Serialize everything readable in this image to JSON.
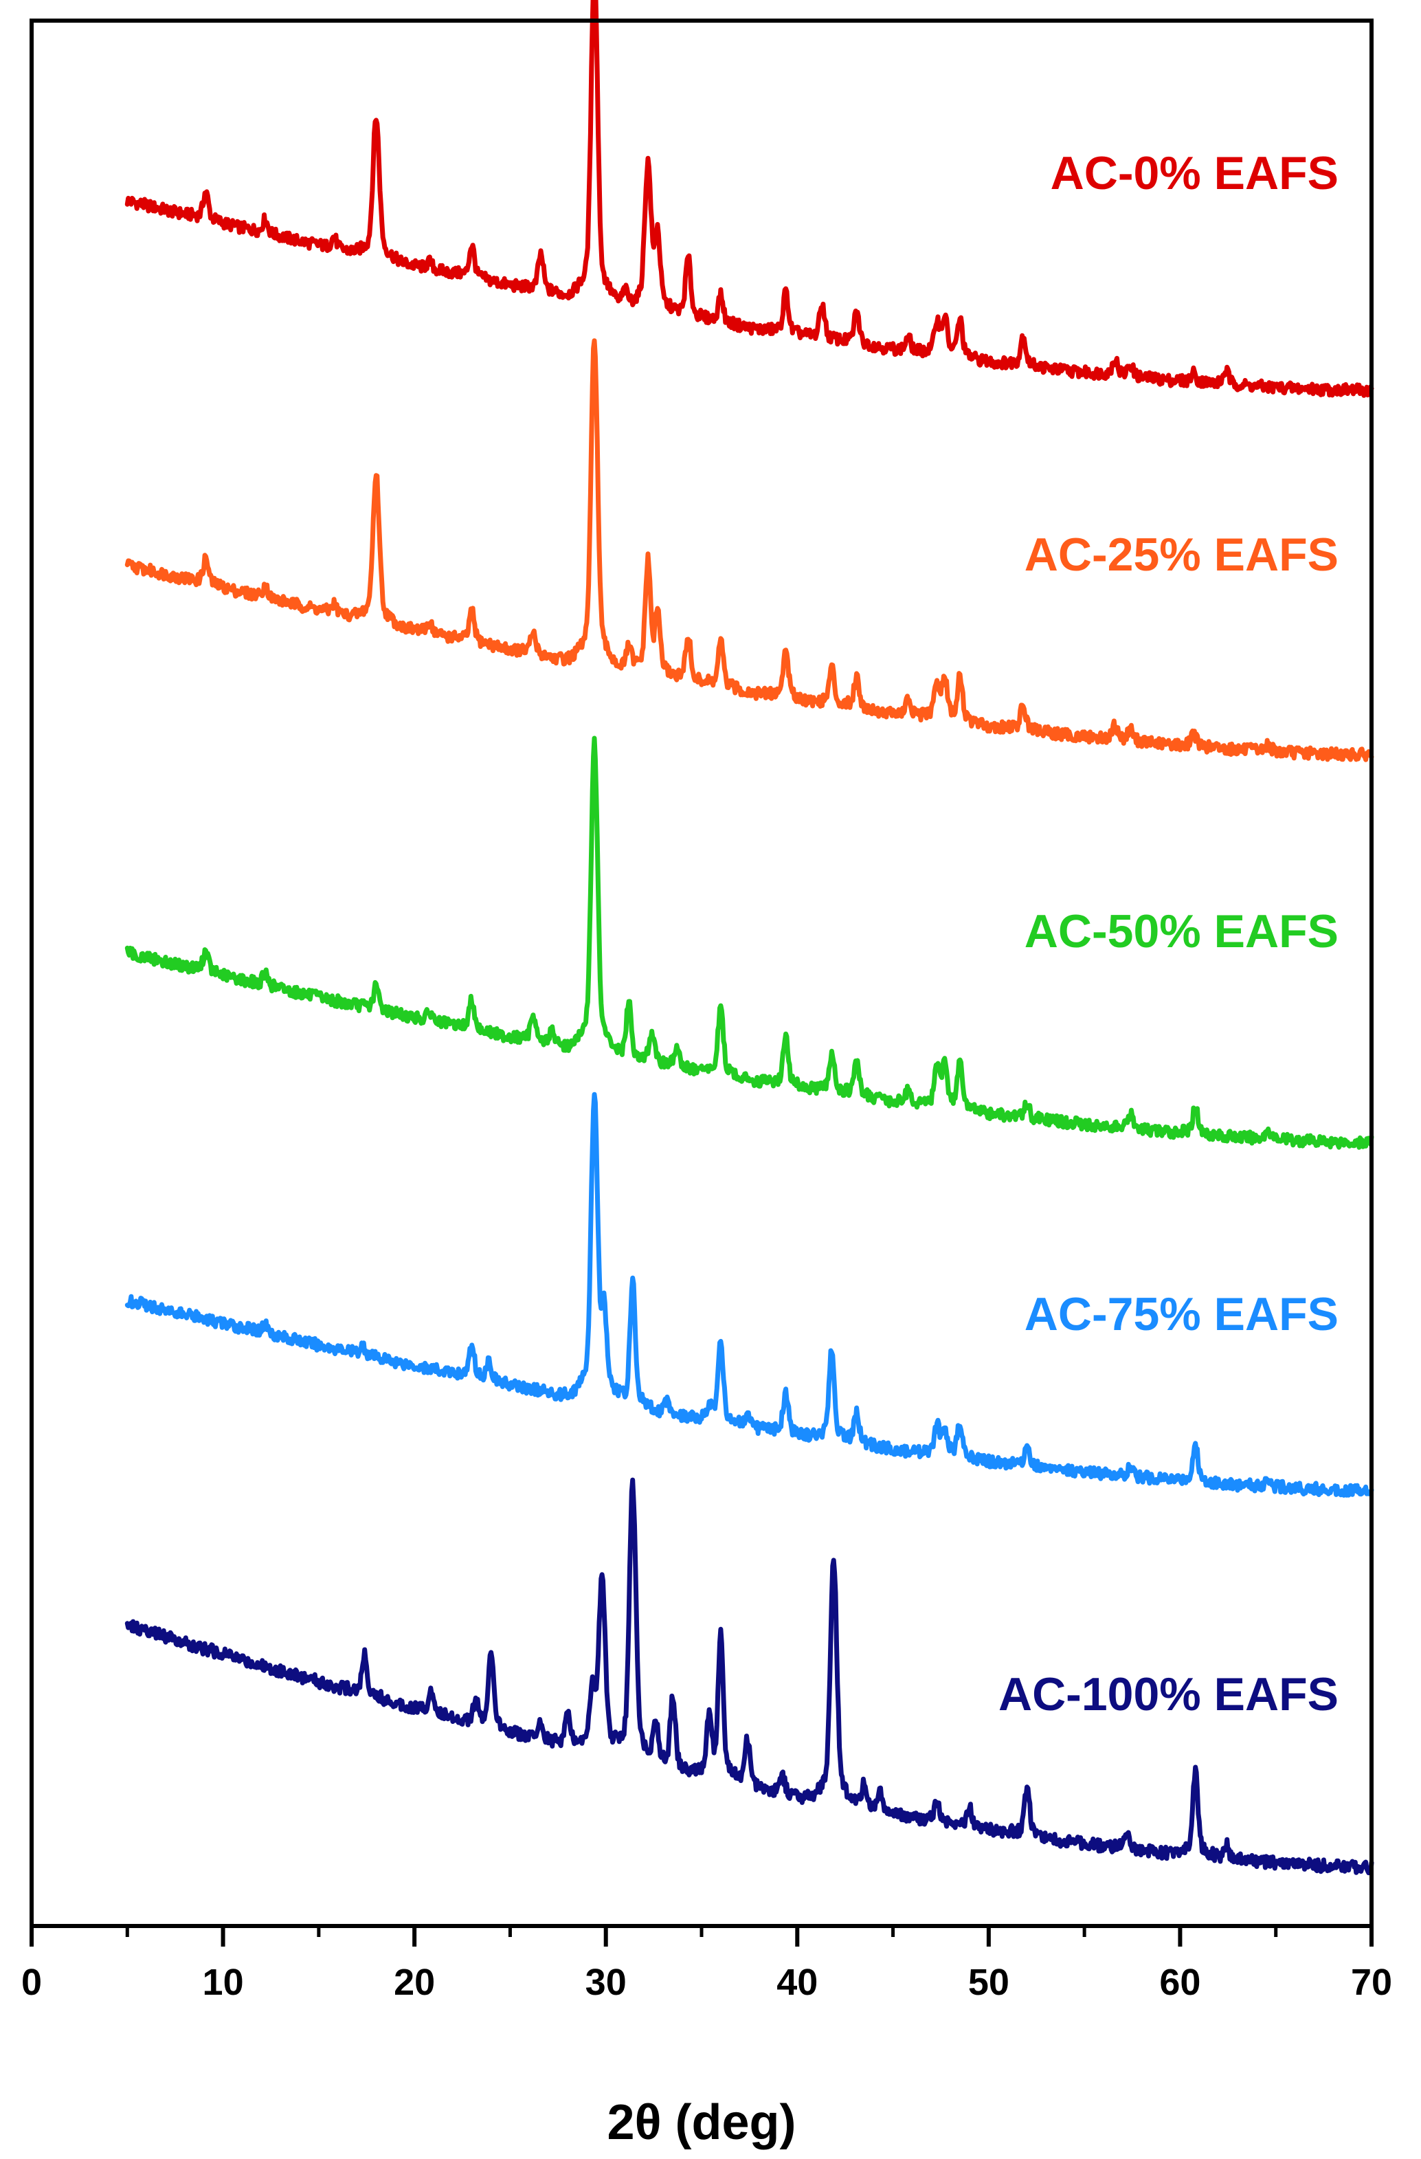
{
  "chart_data": {
    "type": "line",
    "title": "",
    "xlabel": "2θ (deg)",
    "ylabel": "",
    "xlim": [
      0,
      70
    ],
    "xticks": [
      0,
      10,
      20,
      30,
      40,
      50,
      60,
      70
    ],
    "x_tick_labels": [
      "0",
      "10",
      "20",
      "30",
      "40",
      "50",
      "60",
      "70"
    ],
    "y_ticks_shown": false,
    "grid": false,
    "legend_placement": "inline-right-of-each-series",
    "x_range_data": [
      5,
      70
    ],
    "series": [
      {
        "name": "AC-0% EAFS",
        "color": "#dd0000",
        "baseline_start": 9.2,
        "baseline_end": 0,
        "peaks": [
          [
            9.1,
            1.2
          ],
          [
            12.2,
            0.6
          ],
          [
            15.8,
            0.5
          ],
          [
            18.0,
            6.1
          ],
          [
            20.8,
            0.3
          ],
          [
            23.0,
            1.4
          ],
          [
            26.6,
            1.6
          ],
          [
            29.4,
            14.5
          ],
          [
            31.0,
            0.6
          ],
          [
            32.2,
            6.2
          ],
          [
            32.7,
            3.2
          ],
          [
            34.3,
            2.6
          ],
          [
            36.0,
            1.2
          ],
          [
            39.4,
            1.8
          ],
          [
            41.3,
            1.5
          ],
          [
            43.1,
            1.4
          ],
          [
            45.8,
            0.6
          ],
          [
            47.3,
            1.4
          ],
          [
            47.7,
            1.6
          ],
          [
            48.5,
            1.6
          ],
          [
            51.8,
            1.3
          ],
          [
            56.6,
            0.7
          ],
          [
            57.4,
            0.5
          ],
          [
            60.7,
            0.4
          ],
          [
            62.4,
            0.6
          ]
        ]
      },
      {
        "name": "AC-25% EAFS",
        "color": "#ff5c1a",
        "baseline_start": 9.2,
        "baseline_end": 0,
        "peaks": [
          [
            9.1,
            1.1
          ],
          [
            12.2,
            0.5
          ],
          [
            15.8,
            0.4
          ],
          [
            18.0,
            6.4
          ],
          [
            20.8,
            0.5
          ],
          [
            23.0,
            1.3
          ],
          [
            26.2,
            0.9
          ],
          [
            29.4,
            14.2
          ],
          [
            31.2,
            1.0
          ],
          [
            32.2,
            4.8
          ],
          [
            32.7,
            2.6
          ],
          [
            34.3,
            2.0
          ],
          [
            36.0,
            2.0
          ],
          [
            39.4,
            2.1
          ],
          [
            41.8,
            1.6
          ],
          [
            43.1,
            1.4
          ],
          [
            45.8,
            0.7
          ],
          [
            47.3,
            1.5
          ],
          [
            47.7,
            1.7
          ],
          [
            48.5,
            1.9
          ],
          [
            51.8,
            1.1
          ],
          [
            56.6,
            0.6
          ],
          [
            57.4,
            0.5
          ],
          [
            60.7,
            0.6
          ],
          [
            64.6,
            0.3
          ]
        ]
      },
      {
        "name": "AC-50% EAFS",
        "color": "#22cc22",
        "baseline_start": 9.2,
        "baseline_end": 0,
        "peaks": [
          [
            9.1,
            0.9
          ],
          [
            12.2,
            0.5
          ],
          [
            18.0,
            1.0
          ],
          [
            20.8,
            0.4
          ],
          [
            23.0,
            1.3
          ],
          [
            26.2,
            1.2
          ],
          [
            27.2,
            0.6
          ],
          [
            29.4,
            13.5
          ],
          [
            31.2,
            2.4
          ],
          [
            32.4,
            1.3
          ],
          [
            33.7,
            0.9
          ],
          [
            36.0,
            3.0
          ],
          [
            39.4,
            2.1
          ],
          [
            41.8,
            1.7
          ],
          [
            43.1,
            1.5
          ],
          [
            45.8,
            0.6
          ],
          [
            47.3,
            1.6
          ],
          [
            47.7,
            1.8
          ],
          [
            48.5,
            2.0
          ],
          [
            52.0,
            0.6
          ],
          [
            57.4,
            0.6
          ],
          [
            60.8,
            1.2
          ],
          [
            64.6,
            0.4
          ]
        ]
      },
      {
        "name": "AC-75% EAFS",
        "color": "#1a8cff",
        "baseline_start": 9.2,
        "baseline_end": 0,
        "peaks": [
          [
            12.2,
            0.4
          ],
          [
            17.3,
            0.4
          ],
          [
            23.0,
            1.3
          ],
          [
            23.9,
            0.8
          ],
          [
            29.4,
            13.0
          ],
          [
            29.9,
            3.5
          ],
          [
            31.4,
            5.5
          ],
          [
            33.2,
            0.6
          ],
          [
            35.5,
            0.6
          ],
          [
            36.0,
            3.5
          ],
          [
            37.4,
            0.4
          ],
          [
            39.4,
            1.8
          ],
          [
            41.8,
            3.9
          ],
          [
            43.1,
            1.3
          ],
          [
            47.3,
            1.2
          ],
          [
            47.7,
            1.0
          ],
          [
            48.5,
            1.5
          ],
          [
            52.0,
            0.8
          ],
          [
            57.4,
            0.5
          ],
          [
            60.8,
            1.6
          ],
          [
            64.6,
            0.4
          ]
        ]
      },
      {
        "name": "AC-100% EAFS",
        "color": "#0d0d80",
        "baseline_start": 11.0,
        "baseline_end": 0,
        "peaks": [
          [
            17.4,
            1.6
          ],
          [
            20.9,
            0.9
          ],
          [
            23.2,
            0.8
          ],
          [
            24.0,
            2.9
          ],
          [
            26.6,
            0.7
          ],
          [
            28.0,
            1.4
          ],
          [
            29.3,
            2.3
          ],
          [
            29.8,
            7.2
          ],
          [
            31.4,
            11.2
          ],
          [
            32.6,
            1.8
          ],
          [
            33.5,
            3.0
          ],
          [
            35.4,
            2.3
          ],
          [
            36.0,
            5.8
          ],
          [
            37.4,
            1.9
          ],
          [
            39.2,
            0.8
          ],
          [
            41.9,
            10.0
          ],
          [
            43.5,
            1.0
          ],
          [
            44.3,
            0.8
          ],
          [
            47.3,
            0.9
          ],
          [
            49.0,
            0.8
          ],
          [
            52.0,
            2.0
          ],
          [
            57.2,
            0.8
          ],
          [
            60.8,
            3.5
          ],
          [
            62.4,
            0.6
          ]
        ]
      }
    ]
  }
}
